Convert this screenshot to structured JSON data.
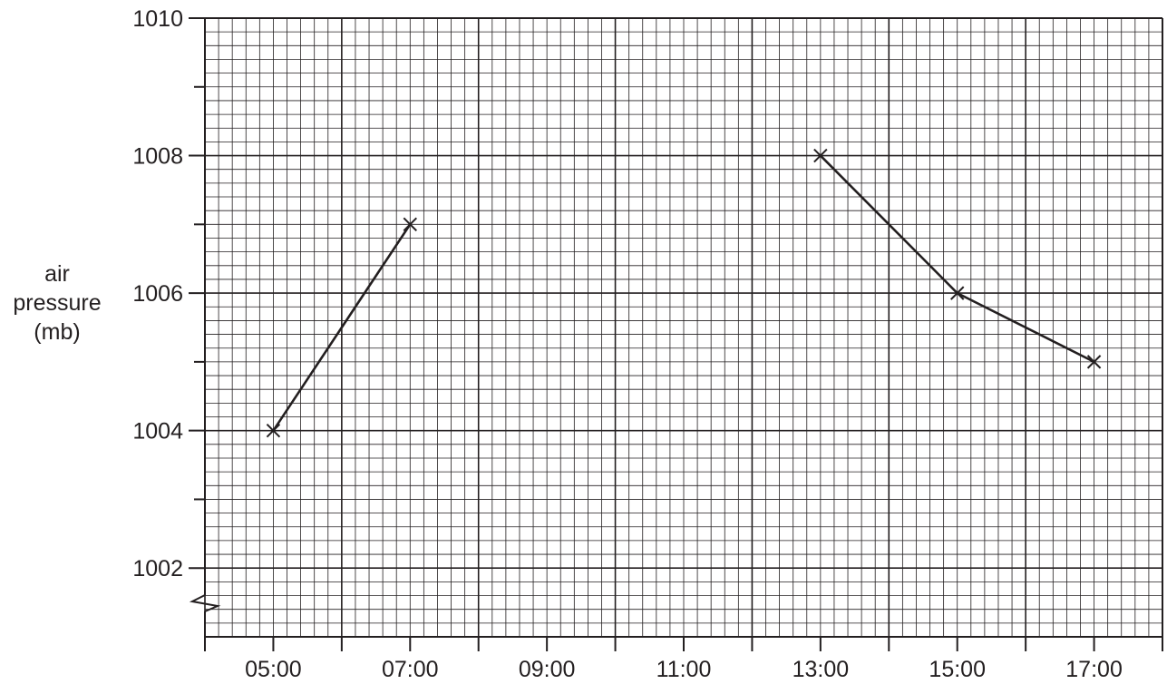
{
  "chart_data": {
    "type": "line",
    "title": "",
    "xlabel": "",
    "ylabel": [
      "air",
      "pressure",
      "(mb)"
    ],
    "x_ticks": [
      "05:00",
      "07:00",
      "09:00",
      "11:00",
      "13:00",
      "15:00",
      "17:00"
    ],
    "y_ticks": [
      1002,
      1004,
      1006,
      1008,
      1010
    ],
    "xlim": [
      "04:00",
      "18:00"
    ],
    "ylim": [
      1001,
      1010
    ],
    "y_axis_break": true,
    "grid": true,
    "segments": [
      {
        "x": [
          "05:00",
          "07:00"
        ],
        "y": [
          1004,
          1007
        ]
      },
      {
        "x": [
          "13:00",
          "15:00",
          "17:00"
        ],
        "y": [
          1008,
          1006,
          1005
        ]
      }
    ],
    "colors": {
      "ink": "#231f20"
    }
  }
}
